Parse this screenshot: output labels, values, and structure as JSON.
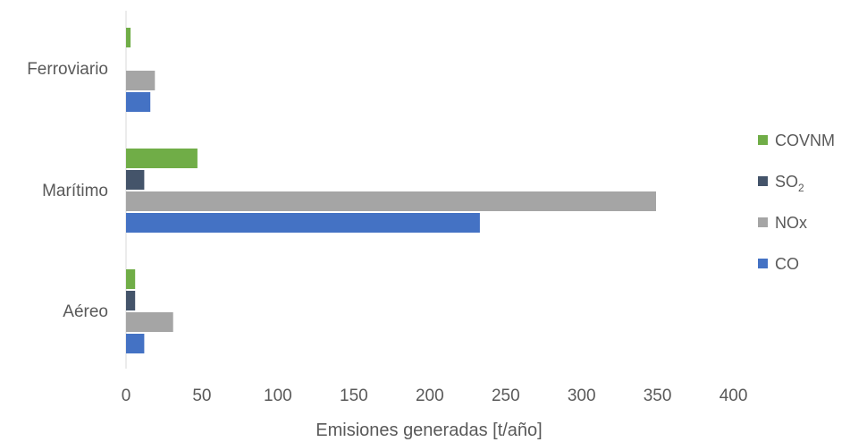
{
  "chart_data": {
    "type": "bar",
    "orientation": "horizontal",
    "categories": [
      "Aéreo",
      "Marítimo",
      "Ferroviario"
    ],
    "series": [
      {
        "name": "CO",
        "color": "#4472C4",
        "values": [
          12,
          233,
          16
        ]
      },
      {
        "name": "NOx",
        "color": "#A5A5A5",
        "values": [
          31,
          349,
          19
        ]
      },
      {
        "name": "SO2",
        "color": "#44546A",
        "values": [
          6,
          12,
          0
        ]
      },
      {
        "name": "COVNM",
        "color": "#70AD47",
        "values": [
          6,
          47,
          3
        ]
      }
    ],
    "xlabel": "Emisiones generadas [t/año]",
    "ylabel": "",
    "xlim": [
      0,
      400
    ],
    "xticks": [
      0,
      50,
      100,
      150,
      200,
      250,
      300,
      350,
      400
    ],
    "grid": false,
    "legend_position": "right",
    "legend_order": [
      "COVNM",
      "SO2",
      "NOx",
      "CO"
    ]
  }
}
